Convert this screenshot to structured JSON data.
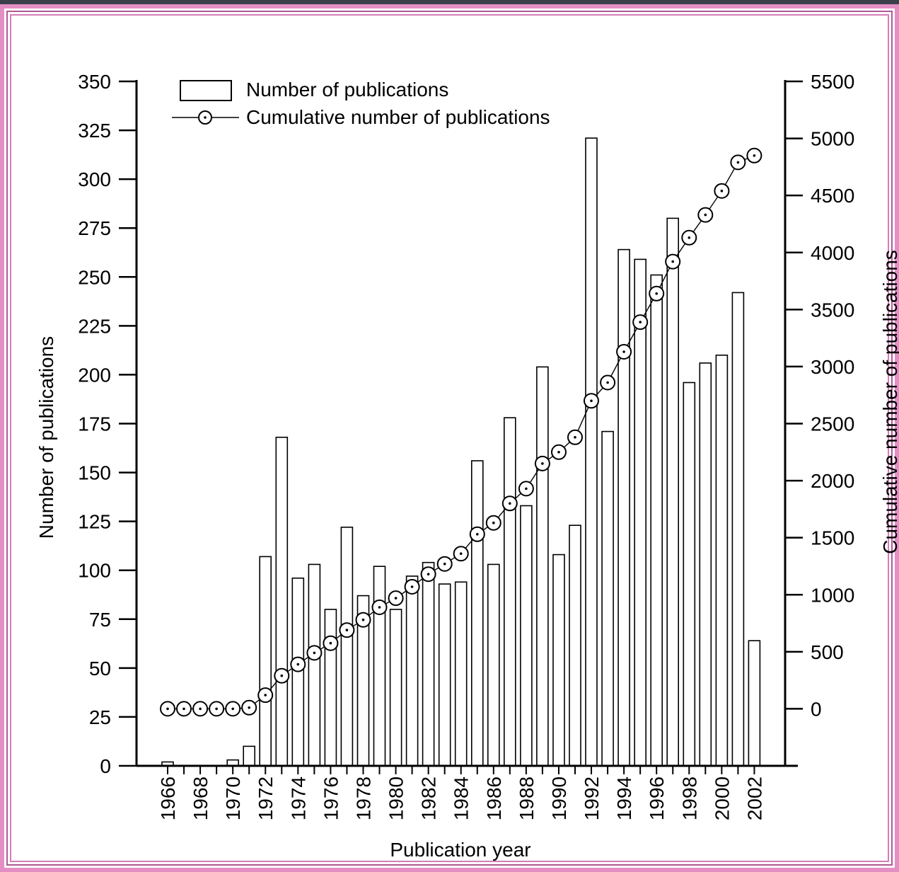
{
  "chart_data": {
    "type": "bar",
    "title": "",
    "xlabel": "Publication year",
    "ylabel": "Number of publications",
    "y2label": "Cumulative number of publications",
    "ylim": [
      0,
      350
    ],
    "y2lim": [
      -500,
      5500
    ],
    "yticks": [
      "0",
      "25",
      "50",
      "75",
      "100",
      "125",
      "150",
      "175",
      "200",
      "225",
      "250",
      "275",
      "300",
      "325",
      "350"
    ],
    "y2ticks": [
      "0",
      "500",
      "1000",
      "1500",
      "2000",
      "2500",
      "3000",
      "3500",
      "4000",
      "4500",
      "5000",
      "5500"
    ],
    "xtick_labels": [
      "1966",
      "1968",
      "1970",
      "1972",
      "1974",
      "1976",
      "1978",
      "1980",
      "1982",
      "1984",
      "1986",
      "1988",
      "1990",
      "1992",
      "1994",
      "1996",
      "1998",
      "2000",
      "2002"
    ],
    "categories": [
      1966,
      1967,
      1968,
      1969,
      1970,
      1971,
      1972,
      1973,
      1974,
      1975,
      1976,
      1977,
      1978,
      1979,
      1980,
      1981,
      1982,
      1983,
      1984,
      1985,
      1986,
      1987,
      1988,
      1989,
      1990,
      1991,
      1992,
      1993,
      1994,
      1995,
      1996,
      1997,
      1998,
      1999,
      2000,
      2001,
      2002
    ],
    "legend": {
      "position": "top-left"
    },
    "grid": false,
    "series": [
      {
        "name": "Number of publications",
        "type": "bar",
        "axis": "left",
        "values": [
          2,
          0,
          0,
          0,
          3,
          10,
          107,
          168,
          96,
          103,
          80,
          122,
          87,
          102,
          80,
          97,
          104,
          93,
          94,
          156,
          103,
          178,
          133,
          204,
          108,
          123,
          321,
          171,
          264,
          259,
          251,
          280,
          196,
          206,
          210,
          242,
          64
        ]
      },
      {
        "name": "Cumulative number of publications",
        "type": "line",
        "axis": "right",
        "values": [
          0,
          0,
          0,
          0,
          0,
          10,
          120,
          290,
          390,
          490,
          575,
          690,
          780,
          890,
          970,
          1070,
          1180,
          1270,
          1360,
          1530,
          1630,
          1800,
          1930,
          2150,
          2250,
          2380,
          2700,
          2860,
          3130,
          3390,
          3640,
          3920,
          4130,
          4330,
          4540,
          4790,
          4850
        ]
      }
    ]
  }
}
